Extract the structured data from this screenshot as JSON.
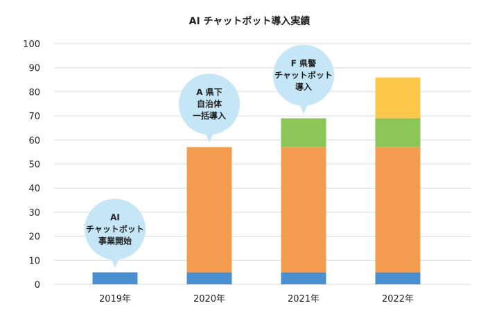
{
  "chart_data": {
    "type": "bar",
    "stacked": true,
    "title": "AI チャットボット導入実績",
    "xlabel": "",
    "ylabel": "",
    "ylim": [
      0,
      100
    ],
    "yticks": [
      0,
      10,
      20,
      30,
      40,
      50,
      60,
      70,
      80,
      90,
      100
    ],
    "categories": [
      "2019年",
      "2020年",
      "2021年",
      "2022年"
    ],
    "grid": "horizontal",
    "legend": "none",
    "series": [
      {
        "color": "#4a90d0",
        "values": [
          5,
          5,
          5,
          5
        ]
      },
      {
        "color": "#f39c50",
        "values": [
          0,
          52,
          52,
          52
        ]
      },
      {
        "color": "#8cc657",
        "values": [
          0,
          0,
          12,
          12
        ]
      },
      {
        "color": "#fcc84b",
        "values": [
          0,
          0,
          0,
          17
        ]
      }
    ],
    "annotations": [
      {
        "category": "2019年",
        "lines": [
          "AI",
          "チャットボット",
          "事業開始"
        ]
      },
      {
        "category": "2020年",
        "lines": [
          "A 県下",
          "自治体",
          "一括導入"
        ]
      },
      {
        "category": "2021年",
        "lines": [
          "F 県警",
          "チャットボット",
          "導入"
        ]
      }
    ],
    "callout_color": "#c5e6f7"
  }
}
